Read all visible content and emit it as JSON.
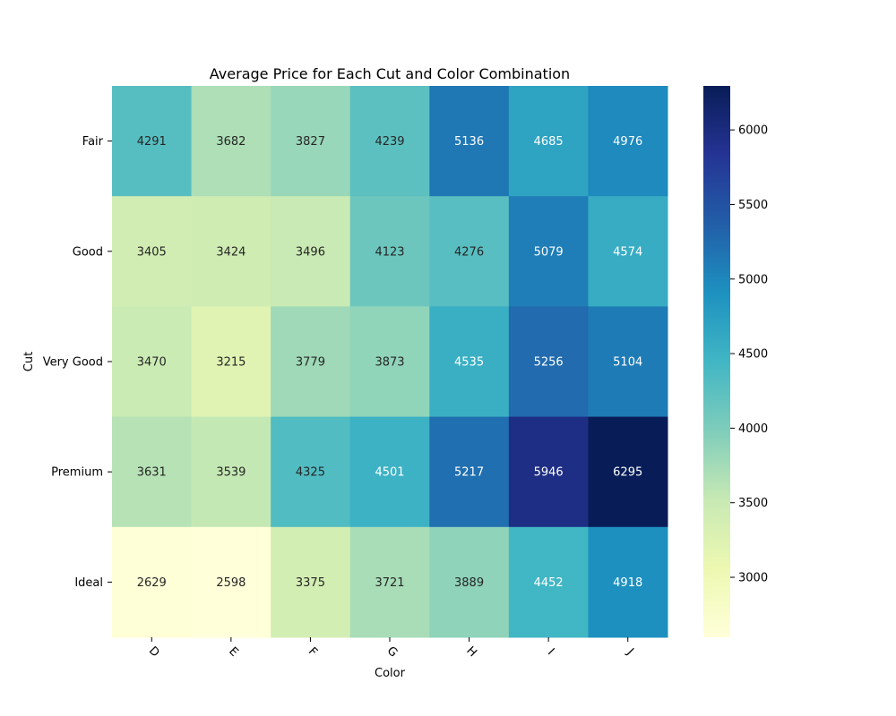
{
  "chart_data": {
    "type": "heatmap",
    "title": "Average Price for Each Cut and Color Combination",
    "xlabel": "Color",
    "ylabel": "Cut",
    "x_categories": [
      "D",
      "E",
      "F",
      "G",
      "H",
      "I",
      "J"
    ],
    "y_categories": [
      "Fair",
      "Good",
      "Very Good",
      "Premium",
      "Ideal"
    ],
    "values": [
      [
        4291,
        3682,
        3827,
        4239,
        5136,
        4685,
        4976
      ],
      [
        3405,
        3424,
        3496,
        4123,
        4276,
        5079,
        4574
      ],
      [
        3470,
        3215,
        3779,
        3873,
        4535,
        5256,
        5104
      ],
      [
        3631,
        3539,
        4325,
        4501,
        5217,
        5946,
        6295
      ],
      [
        2629,
        2598,
        3375,
        3721,
        3889,
        4452,
        4918
      ]
    ],
    "colormap": "YlGnBu",
    "colorbar": {
      "range": [
        2598,
        6295
      ],
      "ticks": [
        3000,
        3500,
        4000,
        4500,
        5000,
        5500,
        6000
      ],
      "tick_labels": [
        "3000",
        "3500",
        "4000",
        "4500",
        "5000",
        "5500",
        "6000"
      ]
    },
    "colorbar_stops": [
      "#ffffd9",
      "#edf8b1",
      "#c7e9b4",
      "#7fcdbb",
      "#41b6c4",
      "#1d91c0",
      "#225ea8",
      "#253494",
      "#081d58"
    ]
  }
}
